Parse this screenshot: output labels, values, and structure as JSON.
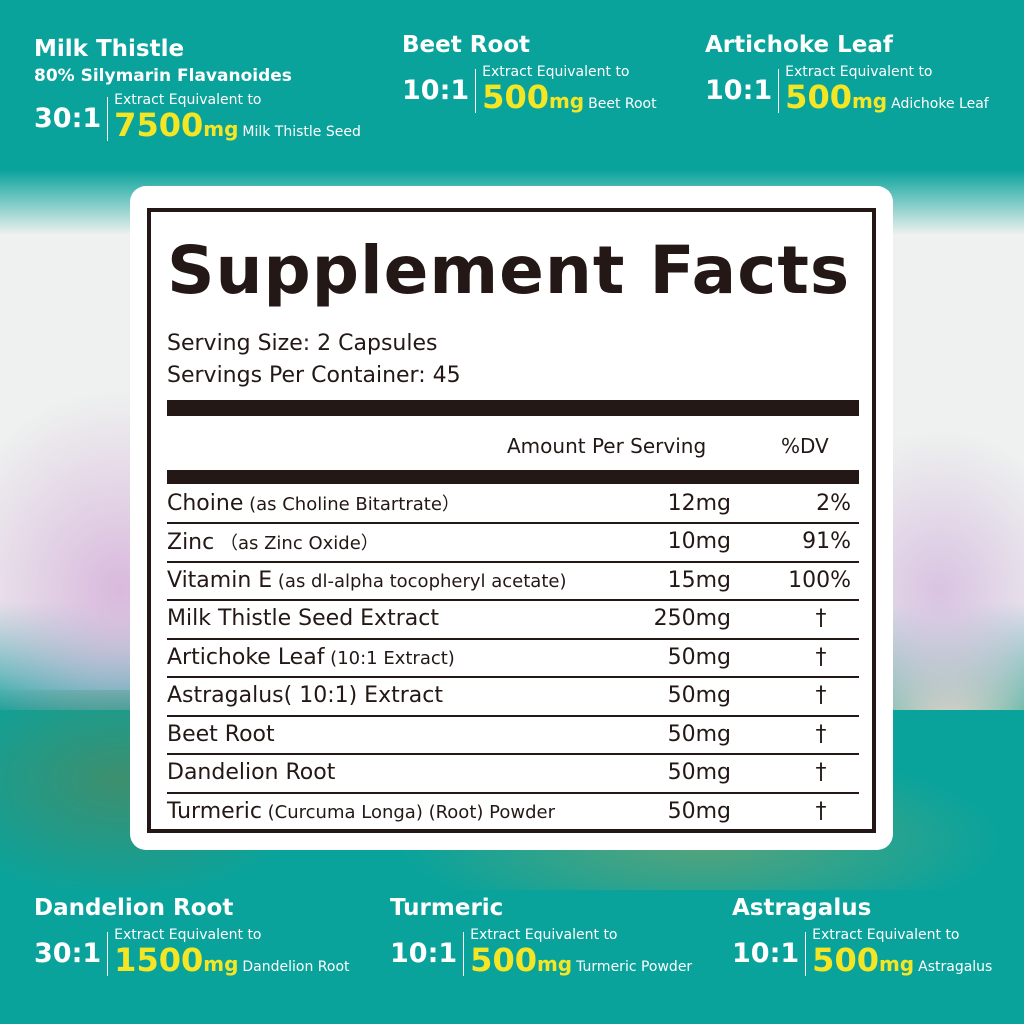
{
  "top_blocks": [
    {
      "name": "Milk Thistle",
      "sub": "80% Silymarin Flavanoides",
      "ratio": "30:1",
      "eq": "Extract Equivalent to",
      "amount": "7500",
      "unit": "mg",
      "what": "Milk Thistle Seed"
    },
    {
      "name": "Beet Root",
      "ratio": "10:1",
      "eq": "Extract Equivalent to",
      "amount": "500",
      "unit": "mg",
      "what": "Beet Root"
    },
    {
      "name": "Artichoke Leaf",
      "ratio": "10:1",
      "eq": "Extract Equivalent to",
      "amount": "500",
      "unit": "mg",
      "what": "Adichoke Leaf"
    }
  ],
  "bottom_blocks": [
    {
      "name": "Dandelion Root",
      "ratio": "30:1",
      "eq": "Extract Equivalent to",
      "amount": "1500",
      "unit": "mg",
      "what": "Dandelion Root"
    },
    {
      "name": "Turmeric",
      "ratio": "10:1",
      "eq": "Extract Equivalent to",
      "amount": "500",
      "unit": "mg",
      "what": "Turmeric Powder"
    },
    {
      "name": "Astragalus",
      "ratio": "10:1",
      "eq": "Extract Equivalent to",
      "amount": "500",
      "unit": "mg",
      "what": "Astragalus"
    }
  ],
  "facts": {
    "title": "Supplement Facts",
    "serving_size": "Serving Size: 2 Capsules",
    "servings_per_container": "Servings Per Container: 45",
    "col_amount": "Amount Per Serving",
    "col_dv": "%DV",
    "rows": [
      {
        "name": "Choine",
        "detail": " (as Choline Bitartrate）",
        "amount": "12mg",
        "dv": "2%"
      },
      {
        "name": "Zinc",
        "detail": " （as Zinc Oxide）",
        "amount": "10mg",
        "dv": "91%"
      },
      {
        "name": "Vitamin E",
        "detail": " (as dl-alpha tocopheryl acetate)",
        "amount": "15mg",
        "dv": "100%"
      },
      {
        "name": "Milk Thistle Seed Extract",
        "detail": "",
        "amount": "250mg",
        "dv": "†"
      },
      {
        "name": "Artichoke Leaf",
        "detail": " (10:1 Extract)",
        "amount": "50mg",
        "dv": "†"
      },
      {
        "name": "Astragalus( 10:1) Extract",
        "detail": "",
        "amount": "50mg",
        "dv": "†"
      },
      {
        "name": "Beet Root",
        "detail": "",
        "amount": "50mg",
        "dv": "†"
      },
      {
        "name": "Dandelion Root",
        "detail": "",
        "amount": "50mg",
        "dv": "†"
      },
      {
        "name": "Turmeric",
        "detail": " (Curcuma Longa) (Root) Powder",
        "amount": "50mg",
        "dv": "†"
      }
    ]
  },
  "colors": {
    "teal": "#0aa39c",
    "yellow": "#f5e625",
    "ink": "#231815"
  }
}
